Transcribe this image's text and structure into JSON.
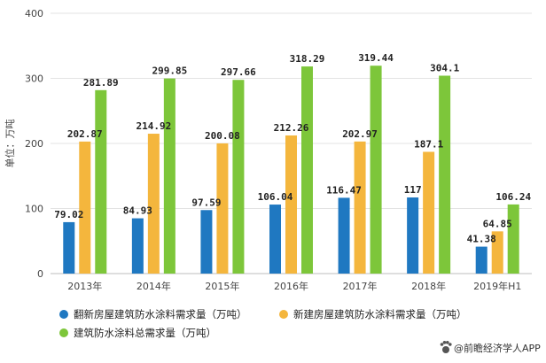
{
  "chart_data": {
    "type": "bar",
    "categories": [
      "2013年",
      "2014年",
      "2015年",
      "2016年",
      "2017年",
      "2018年",
      "2019年H1"
    ],
    "series": [
      {
        "name": "翻新房屋建筑防水涂料需求量（万吨）",
        "color": "#1f78c1",
        "values": [
          79.02,
          84.93,
          97.59,
          106.04,
          116.47,
          117,
          41.38
        ],
        "labels": [
          "79.02",
          "84.93",
          "97.59",
          "106.04",
          "116.47",
          "117",
          "41.38"
        ]
      },
      {
        "name": "新建房屋建筑防水涂料需求量（万吨）",
        "color": "#f4b63d",
        "values": [
          202.87,
          214.92,
          200.08,
          212.26,
          202.97,
          187.1,
          64.85
        ],
        "labels": [
          "202.87",
          "214.92",
          "200.08",
          "212.26",
          "202.97",
          "187.1",
          "64.85"
        ]
      },
      {
        "name": "建筑防水涂料总需求量（万吨）",
        "color": "#7dc63a",
        "values": [
          281.89,
          299.85,
          297.66,
          318.29,
          319.44,
          304.1,
          106.24
        ],
        "labels": [
          "281.89",
          "299.85",
          "297.66",
          "318.29",
          "319.44",
          "304.1",
          "106.24"
        ]
      }
    ],
    "ylabel": "单位：万吨",
    "ylim": [
      0,
      400
    ],
    "yticks": [
      "0",
      "100",
      "200",
      "300",
      "400"
    ],
    "grid": true,
    "legend_position": "bottom"
  },
  "footer": {
    "credit_text": "@前瞻经济学人APP",
    "credit_icon": "paw-icon"
  }
}
